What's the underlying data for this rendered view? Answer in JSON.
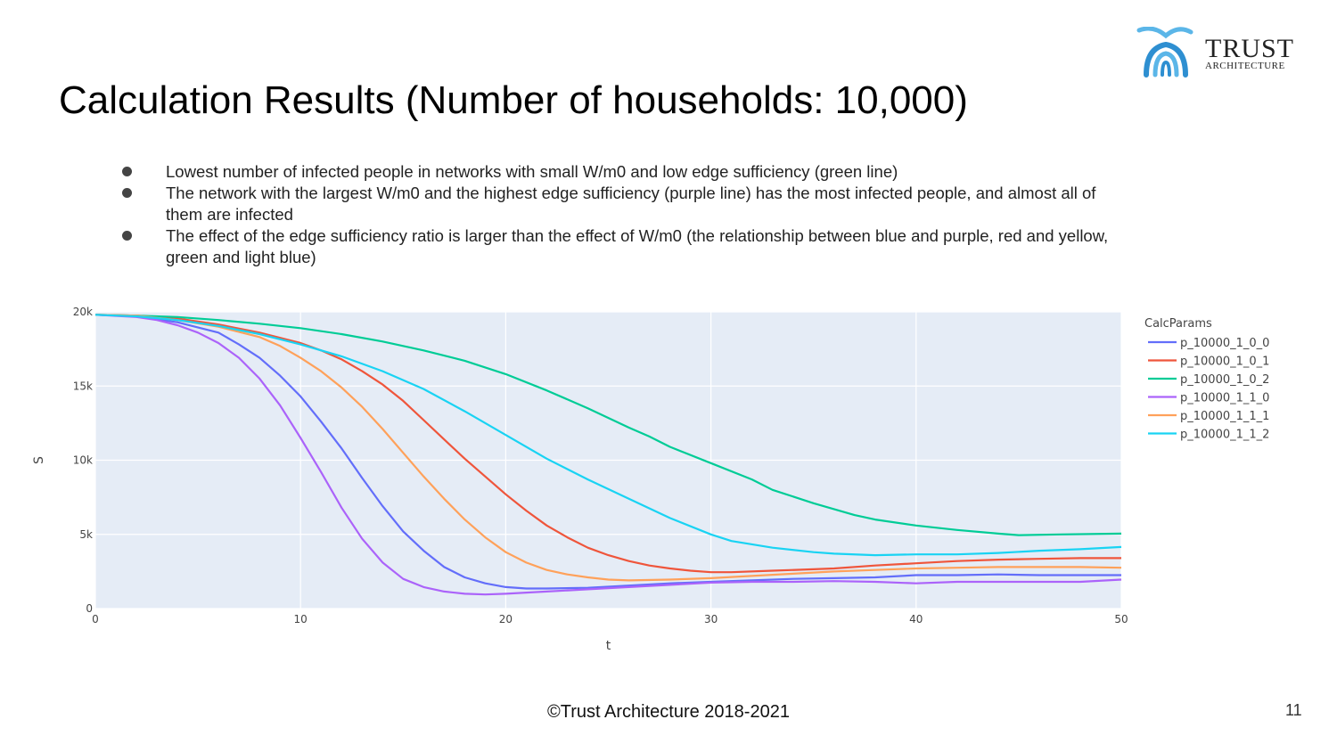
{
  "slide": {
    "title": "Calculation Results (Number of households: 10,000)",
    "bullets": [
      "Lowest number of infected people in networks with small W/m0 and low edge sufficiency (green line)",
      "The network with the largest W/m0 and the highest edge sufficiency (purple line) has the most infected people, and almost all of them are infected",
      "The effect of the edge sufficiency ratio is larger than the effect of W/m0 (the relationship between blue and purple, red and yellow, green and light blue)"
    ],
    "footer": "©Trust Architecture 2018-2021",
    "page_number": "11"
  },
  "logo": {
    "line1": "TRUST",
    "line2": "ARCHITECTURE",
    "colors": [
      "#2e8fd1",
      "#5bb6e8"
    ]
  },
  "chart_data": {
    "type": "line",
    "xlabel": "t",
    "ylabel": "S",
    "xlim": [
      0,
      50
    ],
    "ylim": [
      0,
      20000
    ],
    "x_ticks": [
      0,
      10,
      20,
      30,
      40,
      50
    ],
    "y_ticks": [
      0,
      5000,
      10000,
      15000,
      20000
    ],
    "y_tick_labels": [
      "0",
      "5k",
      "10k",
      "15k",
      "20k"
    ],
    "grid": true,
    "legend_title": "CalcParams",
    "legend_position": "right",
    "plot_bg": "#e5ecf6",
    "series": [
      {
        "name": "p_10000_1_0_0",
        "color": "#636efa",
        "points": [
          [
            0,
            19800
          ],
          [
            2,
            19700
          ],
          [
            4,
            19300
          ],
          [
            6,
            18600
          ],
          [
            7,
            17800
          ],
          [
            8,
            16900
          ],
          [
            9,
            15700
          ],
          [
            10,
            14300
          ],
          [
            11,
            12600
          ],
          [
            12,
            10800
          ],
          [
            13,
            8800
          ],
          [
            14,
            6900
          ],
          [
            15,
            5200
          ],
          [
            16,
            3900
          ],
          [
            17,
            2800
          ],
          [
            18,
            2100
          ],
          [
            19,
            1700
          ],
          [
            20,
            1450
          ],
          [
            21,
            1350
          ],
          [
            22,
            1350
          ],
          [
            24,
            1400
          ],
          [
            26,
            1550
          ],
          [
            28,
            1700
          ],
          [
            30,
            1800
          ],
          [
            32,
            1900
          ],
          [
            34,
            2000
          ],
          [
            36,
            2050
          ],
          [
            38,
            2100
          ],
          [
            40,
            2250
          ],
          [
            42,
            2250
          ],
          [
            44,
            2300
          ],
          [
            46,
            2250
          ],
          [
            48,
            2250
          ],
          [
            50,
            2250
          ]
        ]
      },
      {
        "name": "p_10000_1_0_1",
        "color": "#ef553b",
        "points": [
          [
            0,
            19800
          ],
          [
            2,
            19750
          ],
          [
            4,
            19550
          ],
          [
            6,
            19150
          ],
          [
            8,
            18600
          ],
          [
            10,
            17900
          ],
          [
            11,
            17400
          ],
          [
            12,
            16800
          ],
          [
            13,
            16000
          ],
          [
            14,
            15100
          ],
          [
            15,
            14000
          ],
          [
            16,
            12700
          ],
          [
            17,
            11400
          ],
          [
            18,
            10100
          ],
          [
            19,
            8900
          ],
          [
            20,
            7700
          ],
          [
            21,
            6600
          ],
          [
            22,
            5600
          ],
          [
            23,
            4800
          ],
          [
            24,
            4100
          ],
          [
            25,
            3600
          ],
          [
            26,
            3200
          ],
          [
            27,
            2900
          ],
          [
            28,
            2700
          ],
          [
            29,
            2550
          ],
          [
            30,
            2450
          ],
          [
            31,
            2450
          ],
          [
            33,
            2550
          ],
          [
            35,
            2650
          ],
          [
            36,
            2700
          ],
          [
            38,
            2900
          ],
          [
            40,
            3050
          ],
          [
            42,
            3200
          ],
          [
            44,
            3300
          ],
          [
            46,
            3350
          ],
          [
            48,
            3400
          ],
          [
            50,
            3400
          ]
        ]
      },
      {
        "name": "p_10000_1_0_2",
        "color": "#00cc96",
        "points": [
          [
            0,
            19800
          ],
          [
            2,
            19750
          ],
          [
            4,
            19650
          ],
          [
            6,
            19450
          ],
          [
            8,
            19200
          ],
          [
            10,
            18900
          ],
          [
            12,
            18500
          ],
          [
            14,
            18000
          ],
          [
            16,
            17400
          ],
          [
            18,
            16700
          ],
          [
            20,
            15800
          ],
          [
            22,
            14700
          ],
          [
            24,
            13500
          ],
          [
            26,
            12200
          ],
          [
            27,
            11600
          ],
          [
            28,
            10900
          ],
          [
            30,
            9800
          ],
          [
            32,
            8700
          ],
          [
            33,
            8000
          ],
          [
            35,
            7100
          ],
          [
            37,
            6300
          ],
          [
            38,
            6000
          ],
          [
            40,
            5600
          ],
          [
            42,
            5300
          ],
          [
            44,
            5050
          ],
          [
            45,
            4950
          ],
          [
            47,
            5000
          ],
          [
            50,
            5050
          ]
        ]
      },
      {
        "name": "p_10000_1_1_0",
        "color": "#ab63fa",
        "points": [
          [
            0,
            19800
          ],
          [
            2,
            19650
          ],
          [
            3,
            19450
          ],
          [
            4,
            19100
          ],
          [
            5,
            18600
          ],
          [
            6,
            17900
          ],
          [
            7,
            16900
          ],
          [
            8,
            15500
          ],
          [
            9,
            13700
          ],
          [
            10,
            11500
          ],
          [
            11,
            9200
          ],
          [
            12,
            6800
          ],
          [
            13,
            4700
          ],
          [
            14,
            3100
          ],
          [
            15,
            2000
          ],
          [
            16,
            1450
          ],
          [
            17,
            1150
          ],
          [
            18,
            1000
          ],
          [
            19,
            950
          ],
          [
            20,
            1000
          ],
          [
            22,
            1150
          ],
          [
            24,
            1300
          ],
          [
            26,
            1450
          ],
          [
            28,
            1600
          ],
          [
            30,
            1750
          ],
          [
            32,
            1800
          ],
          [
            34,
            1800
          ],
          [
            36,
            1850
          ],
          [
            38,
            1800
          ],
          [
            40,
            1700
          ],
          [
            42,
            1800
          ],
          [
            44,
            1800
          ],
          [
            46,
            1800
          ],
          [
            48,
            1800
          ],
          [
            50,
            1950
          ]
        ]
      },
      {
        "name": "p_10000_1_1_1",
        "color": "#ffa15a",
        "points": [
          [
            0,
            19800
          ],
          [
            2,
            19750
          ],
          [
            4,
            19450
          ],
          [
            6,
            19000
          ],
          [
            8,
            18300
          ],
          [
            9,
            17700
          ],
          [
            10,
            16900
          ],
          [
            11,
            16000
          ],
          [
            12,
            14900
          ],
          [
            13,
            13600
          ],
          [
            14,
            12100
          ],
          [
            15,
            10500
          ],
          [
            16,
            8900
          ],
          [
            17,
            7400
          ],
          [
            18,
            6000
          ],
          [
            19,
            4800
          ],
          [
            20,
            3800
          ],
          [
            21,
            3100
          ],
          [
            22,
            2600
          ],
          [
            23,
            2300
          ],
          [
            24,
            2100
          ],
          [
            25,
            1950
          ],
          [
            26,
            1900
          ],
          [
            28,
            1950
          ],
          [
            30,
            2050
          ],
          [
            32,
            2200
          ],
          [
            34,
            2350
          ],
          [
            36,
            2500
          ],
          [
            38,
            2600
          ],
          [
            40,
            2700
          ],
          [
            42,
            2750
          ],
          [
            44,
            2800
          ],
          [
            46,
            2800
          ],
          [
            48,
            2800
          ],
          [
            50,
            2750
          ]
        ]
      },
      {
        "name": "p_10000_1_1_2",
        "color": "#19d3f3",
        "points": [
          [
            0,
            19800
          ],
          [
            2,
            19700
          ],
          [
            4,
            19450
          ],
          [
            6,
            19050
          ],
          [
            8,
            18500
          ],
          [
            10,
            17800
          ],
          [
            12,
            17000
          ],
          [
            14,
            16000
          ],
          [
            16,
            14800
          ],
          [
            18,
            13300
          ],
          [
            20,
            11700
          ],
          [
            22,
            10100
          ],
          [
            24,
            8700
          ],
          [
            26,
            7400
          ],
          [
            28,
            6100
          ],
          [
            30,
            5000
          ],
          [
            31,
            4550
          ],
          [
            33,
            4100
          ],
          [
            35,
            3800
          ],
          [
            36,
            3700
          ],
          [
            38,
            3600
          ],
          [
            40,
            3650
          ],
          [
            42,
            3650
          ],
          [
            44,
            3750
          ],
          [
            46,
            3900
          ],
          [
            48,
            4000
          ],
          [
            50,
            4150
          ]
        ]
      }
    ]
  }
}
